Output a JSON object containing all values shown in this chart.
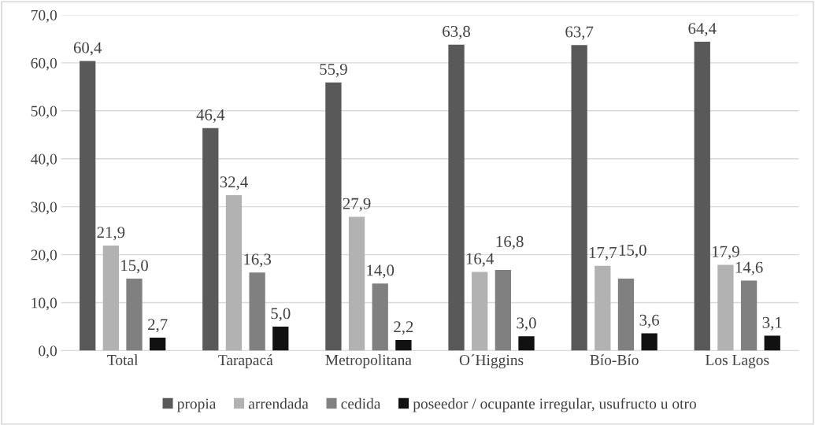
{
  "chart_data": {
    "type": "bar",
    "categories": [
      "Total",
      "Tarapacá",
      "Metropolitana",
      "O´Higgins",
      "Bío-Bío",
      "Los Lagos"
    ],
    "series": [
      {
        "name": "propia",
        "color": "#595959",
        "values": [
          60.4,
          46.4,
          55.9,
          63.8,
          63.7,
          64.4
        ],
        "value_labels": [
          "60,4",
          "46,4",
          "55,9",
          "63,8",
          "63,7",
          "64,4"
        ]
      },
      {
        "name": "arrendada",
        "color": "#b2b2b2",
        "values": [
          21.9,
          32.4,
          27.9,
          16.4,
          17.7,
          17.9
        ],
        "value_labels": [
          "21,9",
          "32,4",
          "27,9",
          "16,4",
          "17,7",
          "17,9"
        ]
      },
      {
        "name": "cedida",
        "color": "#808080",
        "values": [
          15.0,
          16.3,
          14.0,
          16.8,
          15.0,
          14.6
        ],
        "value_labels": [
          "15,0",
          "16,3",
          "14,0",
          "16,8",
          "15,0",
          "14,6"
        ]
      },
      {
        "name": "poseedor / ocupante irregular, usufructo u otro",
        "color": "#111111",
        "values": [
          2.7,
          5.0,
          2.2,
          3.0,
          3.6,
          3.1
        ],
        "value_labels": [
          "2,7",
          "5,0",
          "2,2",
          "3,0",
          "3,6",
          "3,1"
        ]
      }
    ],
    "ylim": [
      0,
      70
    ],
    "yticks": [
      {
        "value": 0,
        "label": "0,0"
      },
      {
        "value": 10,
        "label": "10,0"
      },
      {
        "value": 20,
        "label": "20,0"
      },
      {
        "value": 30,
        "label": "30,0"
      },
      {
        "value": 40,
        "label": "40,0"
      },
      {
        "value": 50,
        "label": "50,0"
      },
      {
        "value": 60,
        "label": "60,0"
      },
      {
        "value": 70,
        "label": "70,0"
      }
    ],
    "grid": "y",
    "legend": "bottom"
  }
}
